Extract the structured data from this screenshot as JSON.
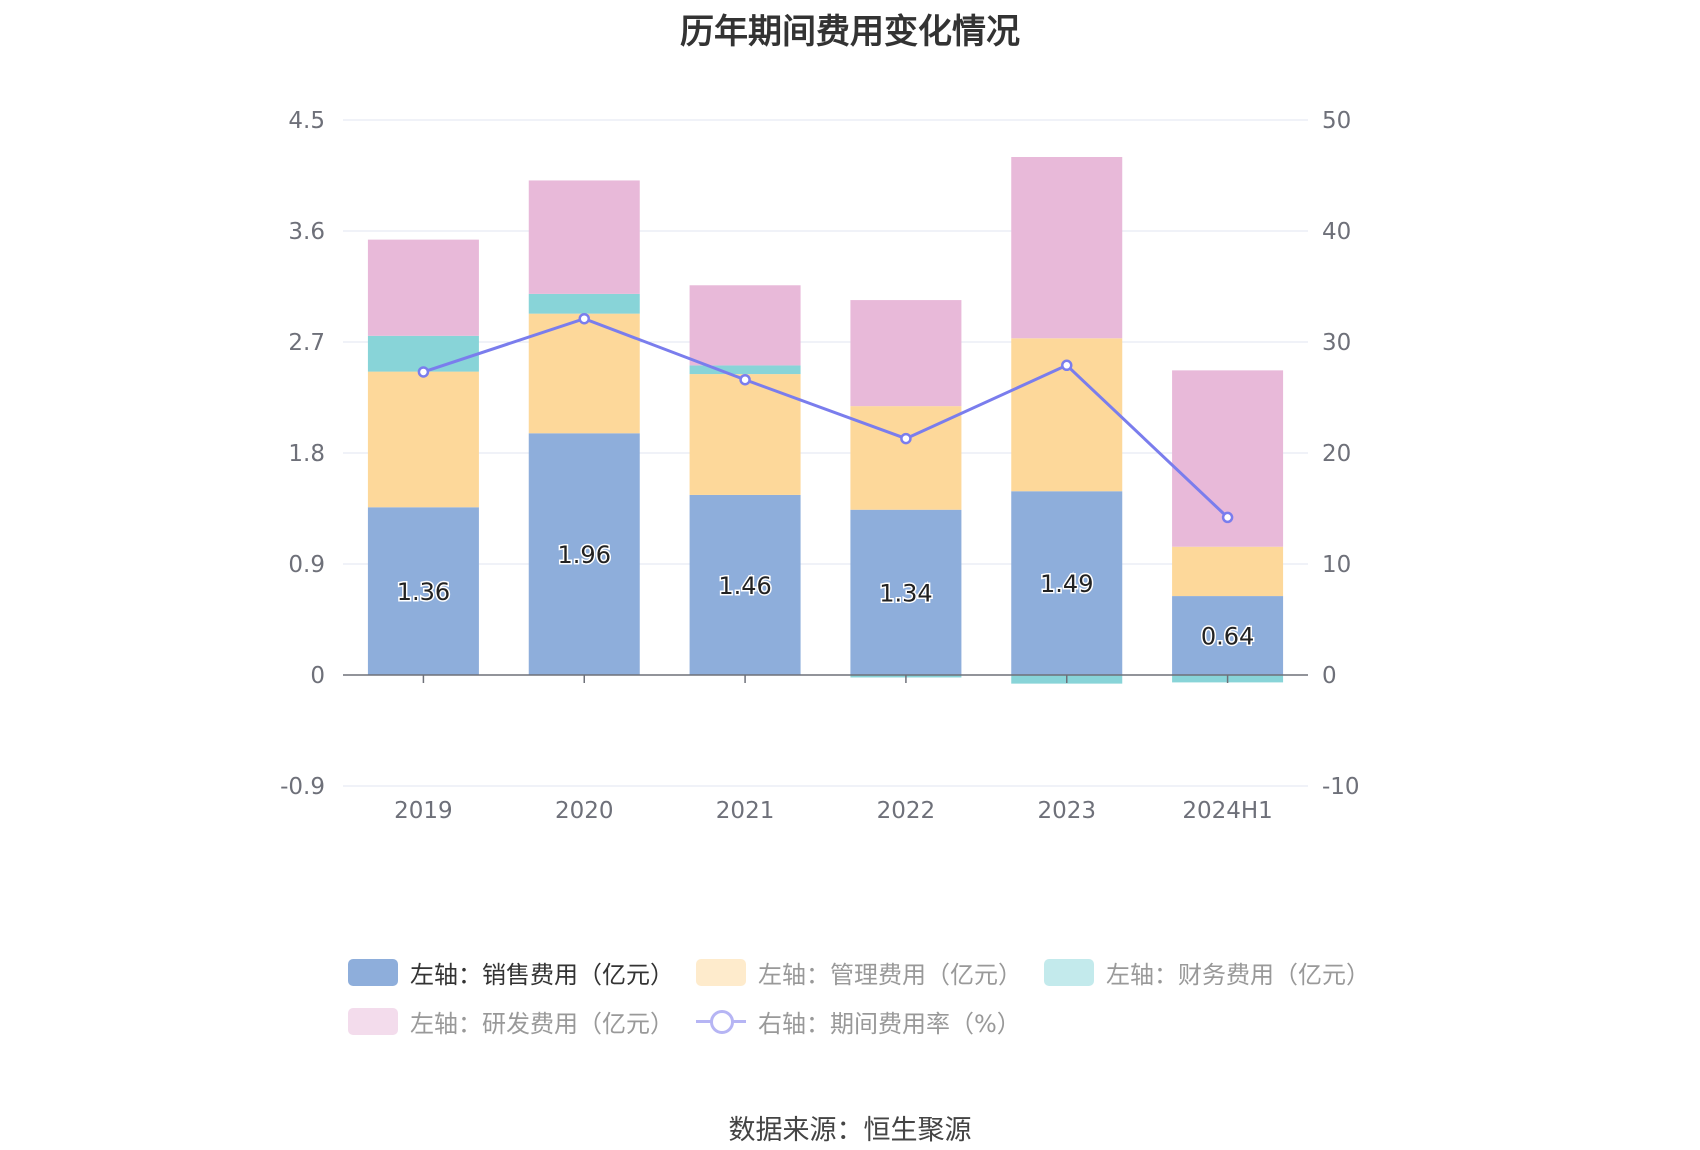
{
  "title": "历年期间费用变化情况",
  "source": "数据来源：恒生聚源",
  "chart_data": {
    "type": "bar",
    "stacked": true,
    "categories": [
      "2019",
      "2020",
      "2021",
      "2022",
      "2023",
      "2024H1"
    ],
    "left_axis": {
      "min": -0.9,
      "max": 4.5,
      "ticks": [
        "4.5",
        "3.6",
        "2.7",
        "1.8",
        "0.9",
        "0",
        "-0.9"
      ]
    },
    "right_axis": {
      "min": -10,
      "max": 50,
      "ticks": [
        "50",
        "40",
        "30",
        "20",
        "10",
        "0",
        "-10"
      ]
    },
    "series": [
      {
        "name": "左轴：销售费用（亿元）",
        "axis": "left",
        "color": "#8eaedb",
        "values": [
          1.36,
          1.96,
          1.46,
          1.34,
          1.49,
          0.64
        ],
        "labels": [
          "1.36",
          "1.96",
          "1.46",
          "1.34",
          "1.49",
          "0.64"
        ]
      },
      {
        "name": "左轴：管理费用（亿元）",
        "axis": "left",
        "color": "#fdd89a",
        "values": [
          1.1,
          0.97,
          0.98,
          0.84,
          1.24,
          0.4
        ]
      },
      {
        "name": "左轴：财务费用（亿元）",
        "axis": "left",
        "color": "#88d4d8",
        "values": [
          0.29,
          0.16,
          0.07,
          -0.02,
          -0.07,
          -0.06
        ]
      },
      {
        "name": "左轴：研发费用（亿元）",
        "axis": "left",
        "color": "#e8b9d9",
        "values": [
          0.78,
          0.92,
          0.65,
          0.86,
          1.47,
          1.43
        ]
      },
      {
        "name": "右轴：期间费用率（%）",
        "axis": "right",
        "type": "line",
        "color": "#7a7ded",
        "values": [
          27.3,
          32.1,
          26.6,
          21.3,
          27.9,
          14.2
        ]
      }
    ],
    "legend": "bottom-center",
    "grid": true
  }
}
